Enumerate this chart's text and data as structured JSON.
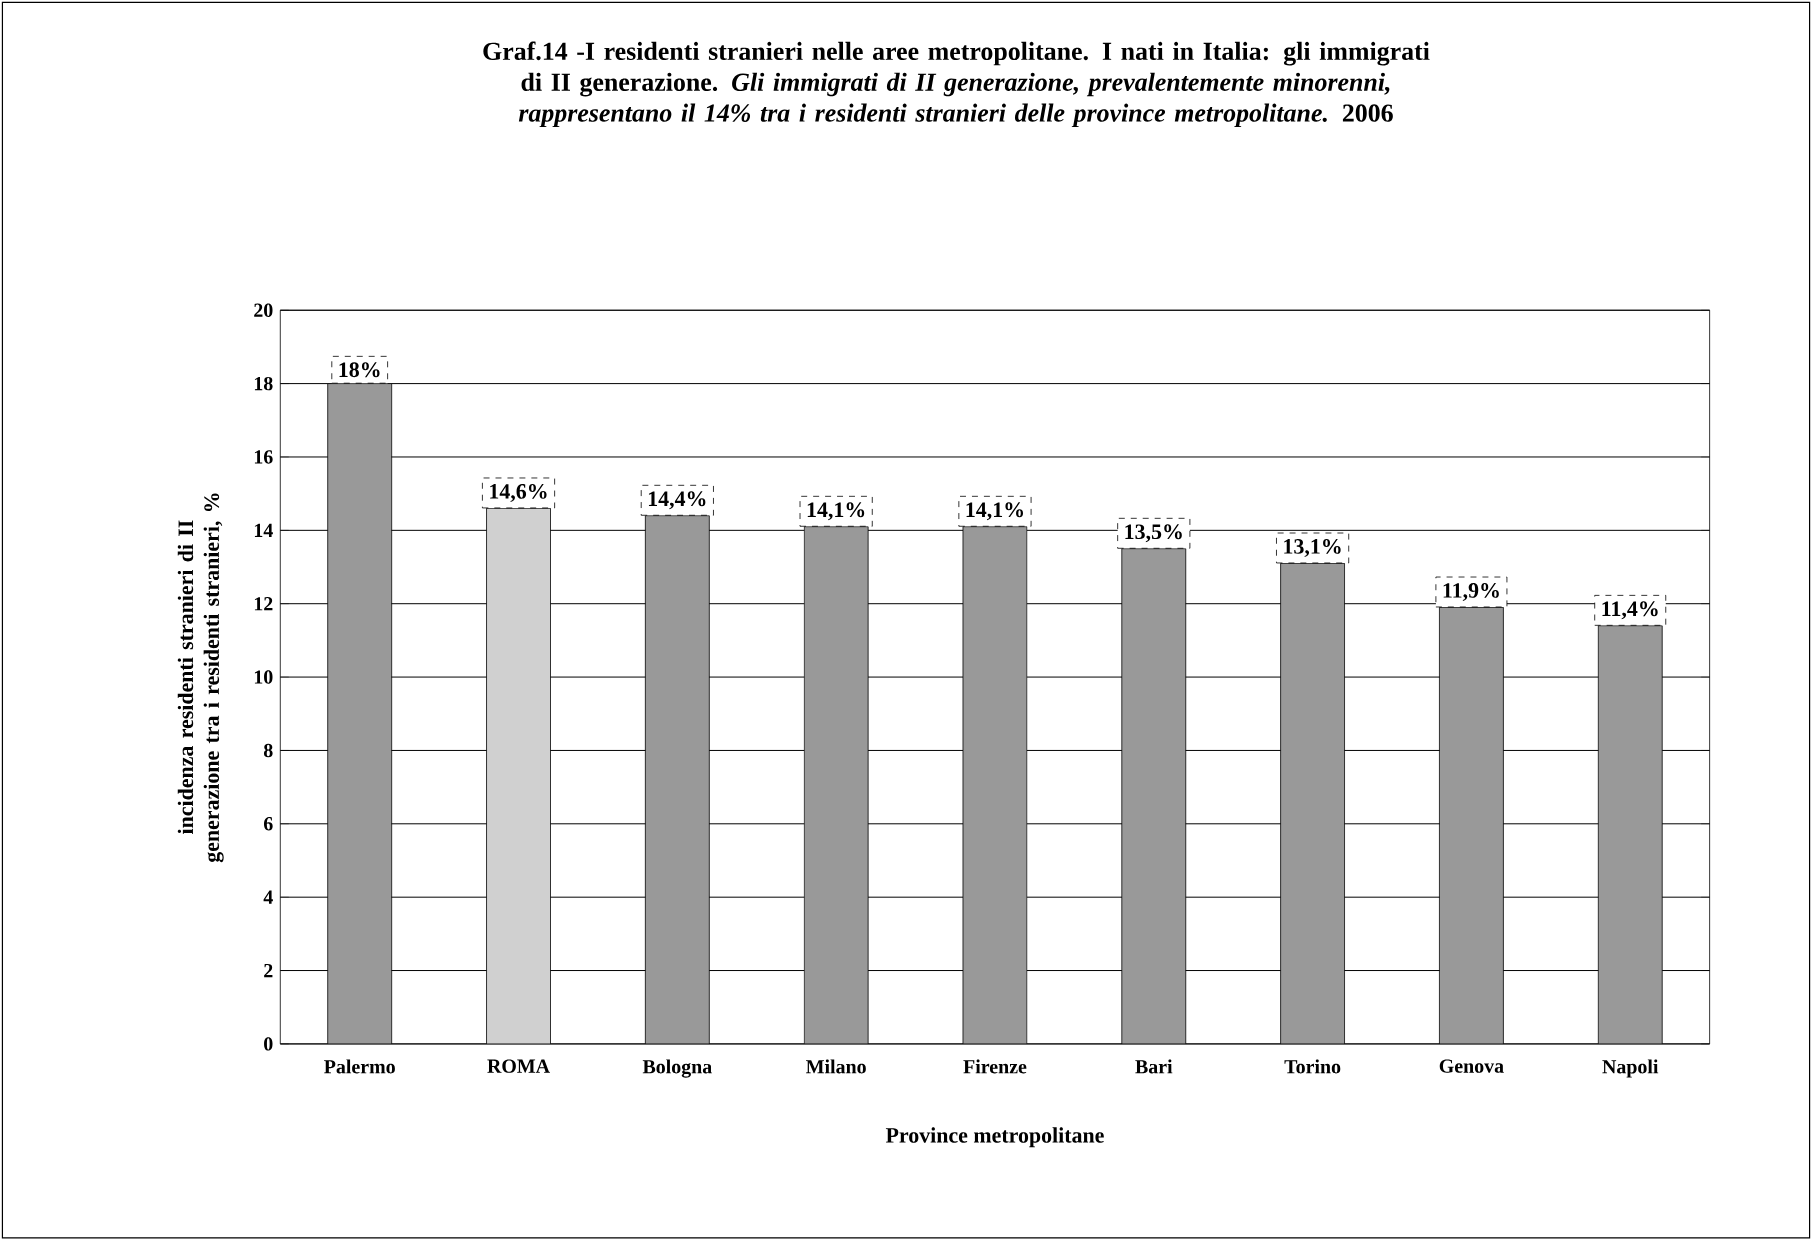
{
  "chart_data": {
    "type": "bar",
    "title": "Graf.14 -I residenti stranieri nelle aree metropolitane. I nati in Italia: gli immigrati di II generazione. *Gli immigrati di II generazione, prevalentemente minorenni, rappresentano il 14% tra i residenti stranieri delle province metropolitane.* 2006",
    "xlabel": "Province metropolitane",
    "ylabel": "incidenza residenti stranieri di II generazione tra i residenti stranieri, %",
    "categories": [
      "Palermo",
      "ROMA",
      "Bologna",
      "Milano",
      "Firenze",
      "Bari",
      "Torino",
      "Genova",
      "Napoli"
    ],
    "values": [
      18,
      14.6,
      14.4,
      14.1,
      14.1,
      13.5,
      13.1,
      11.9,
      11.4
    ],
    "value_labels": [
      "18%",
      "14,6%",
      "14,4%",
      "14,1%",
      "14,1%",
      "13,5%",
      "13,1%",
      "11,9%",
      "11,4%"
    ],
    "colors": [
      "#999999",
      "#d0d0d0",
      "#999999",
      "#999999",
      "#999999",
      "#999999",
      "#999999",
      "#999999",
      "#999999"
    ],
    "ylim": [
      0,
      20
    ],
    "yticks": [
      0,
      2,
      4,
      6,
      8,
      10,
      12,
      14,
      16,
      18,
      20
    ],
    "grid": "y"
  }
}
